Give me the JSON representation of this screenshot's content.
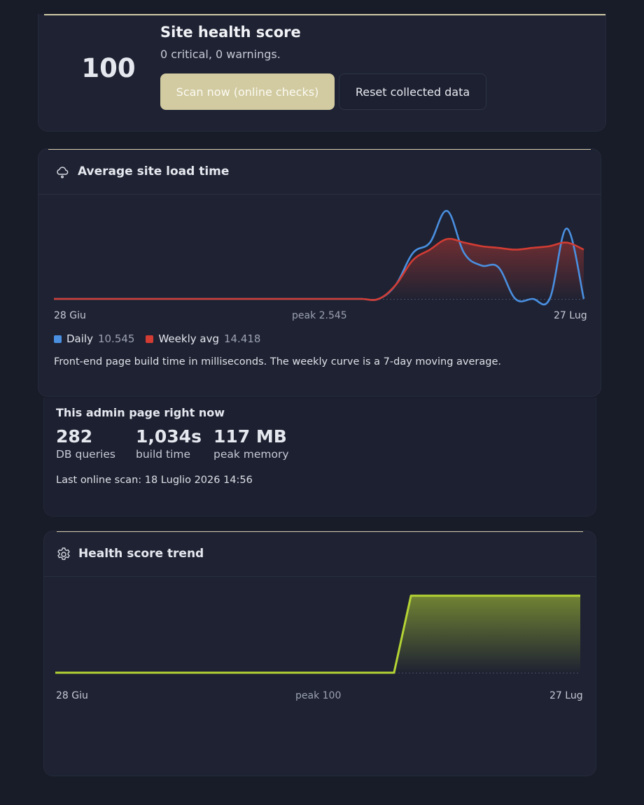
{
  "health": {
    "score": "100",
    "title": "Site health score",
    "subtitle": "0 critical, 0 warnings.",
    "scan_button": "Scan now (online checks)",
    "reset_button": "Reset collected data"
  },
  "load": {
    "title": "Average site load time",
    "icon": "cloud-icon",
    "axis_start": "28 Giu",
    "axis_peak": "peak 2.545",
    "axis_end": "27 Lug",
    "legend": [
      {
        "name": "Daily",
        "value": "10.545",
        "color": "#4a8fe0"
      },
      {
        "name": "Weekly avg",
        "value": "14.418",
        "color": "#d23c33"
      }
    ],
    "description": "Front-end page build time in milliseconds. The weekly curve is a 7-day moving average."
  },
  "admin": {
    "title": "This admin page right now",
    "stats": [
      {
        "value": "282",
        "label": "DB queries"
      },
      {
        "value": "1,034s",
        "label": "build time"
      },
      {
        "value": "117 MB",
        "label": "peak memory"
      }
    ],
    "last_scan": "Last online scan: 18 Luglio 2026 14:56"
  },
  "trend": {
    "title": "Health score trend",
    "icon": "gear-icon",
    "axis_start": "28 Giu",
    "axis_peak": "peak 100",
    "axis_end": "27 Lug"
  },
  "colors": {
    "accent": "#d2cba1",
    "daily": "#4a8fe0",
    "weekly": "#d23c33",
    "trend": "#b4d334",
    "background": "#181c28",
    "card": "#1e2232"
  },
  "chart_data": [
    {
      "type": "area",
      "title": "Average site load time",
      "xlabel": "",
      "ylabel": "",
      "x_range": [
        "28 Giu",
        "27 Lug"
      ],
      "ylim": [
        0,
        2.545
      ],
      "grid": false,
      "legend": "bottom-left",
      "series": [
        {
          "name": "Daily",
          "color": "#4a8fe0",
          "values": [
            0,
            0,
            0,
            0,
            0,
            0,
            0,
            0,
            0,
            0,
            0,
            0,
            0,
            0,
            0,
            0,
            0,
            0,
            0,
            0,
            0.4,
            1.3,
            1.6,
            2.5,
            1.3,
            0.95,
            0.9,
            0,
            0,
            0,
            2.0,
            0
          ]
        },
        {
          "name": "Weekly avg",
          "color": "#d23c33",
          "values": [
            0,
            0,
            0,
            0,
            0,
            0,
            0,
            0,
            0,
            0,
            0,
            0,
            0,
            0,
            0,
            0,
            0,
            0,
            0,
            0,
            0.4,
            1.1,
            1.4,
            1.7,
            1.6,
            1.5,
            1.45,
            1.4,
            1.45,
            1.5,
            1.6,
            1.4
          ]
        }
      ]
    },
    {
      "type": "area",
      "title": "Health score trend",
      "xlabel": "",
      "ylabel": "",
      "x_range": [
        "28 Giu",
        "27 Lug"
      ],
      "ylim": [
        0,
        100
      ],
      "grid": false,
      "series": [
        {
          "color": "#b4d334",
          "values": [
            0,
            0,
            0,
            0,
            0,
            0,
            0,
            0,
            0,
            0,
            0,
            0,
            0,
            0,
            0,
            0,
            0,
            0,
            0,
            0,
            0,
            100,
            100,
            100,
            100,
            100,
            100,
            100,
            100,
            100,
            100,
            100
          ]
        }
      ]
    }
  ]
}
